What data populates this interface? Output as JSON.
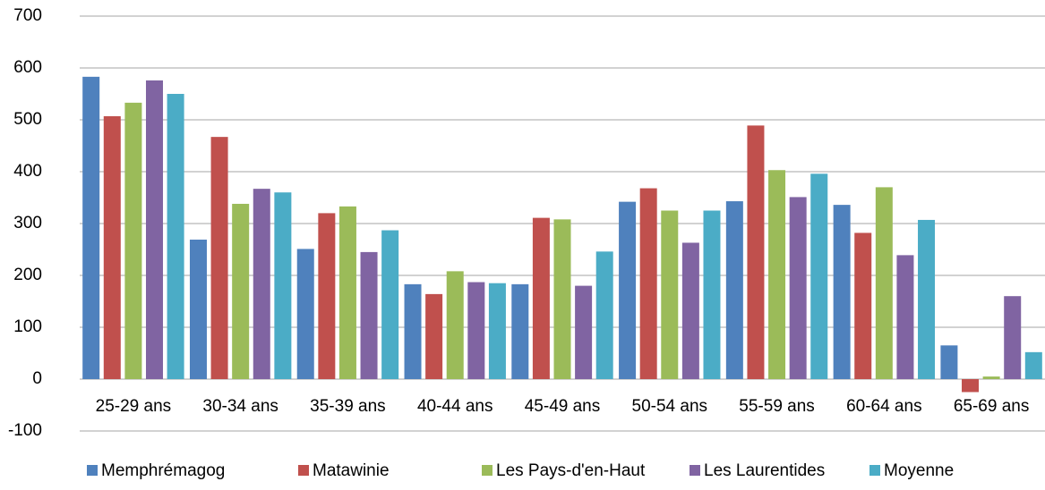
{
  "chart_data": {
    "type": "bar",
    "categories": [
      "25-29 ans",
      "30-34 ans",
      "35-39 ans",
      "40-44 ans",
      "45-49 ans",
      "50-54 ans",
      "55-59 ans",
      "60-64 ans",
      "65-69 ans"
    ],
    "series": [
      {
        "name": "Memphrémagog",
        "color": "#4f81bd",
        "values": [
          583,
          269,
          251,
          183,
          183,
          342,
          343,
          336,
          65
        ]
      },
      {
        "name": "Matawinie",
        "color": "#c0504d",
        "values": [
          507,
          467,
          320,
          164,
          311,
          368,
          489,
          282,
          -25
        ]
      },
      {
        "name": "Les Pays-d'en-Haut",
        "color": "#9bbb59",
        "values": [
          533,
          338,
          333,
          208,
          308,
          325,
          403,
          370,
          5
        ]
      },
      {
        "name": "Les Laurentides",
        "color": "#8064a2",
        "values": [
          576,
          367,
          245,
          187,
          180,
          263,
          351,
          239,
          160
        ]
      },
      {
        "name": "Moyenne",
        "color": "#4bacc6",
        "values": [
          550,
          360,
          287,
          185,
          246,
          325,
          396,
          307,
          52
        ]
      }
    ],
    "ylim": [
      -100,
      700
    ],
    "yticks": [
      -100,
      0,
      100,
      200,
      300,
      400,
      500,
      600,
      700
    ],
    "grid": true,
    "legend": "bottom"
  }
}
